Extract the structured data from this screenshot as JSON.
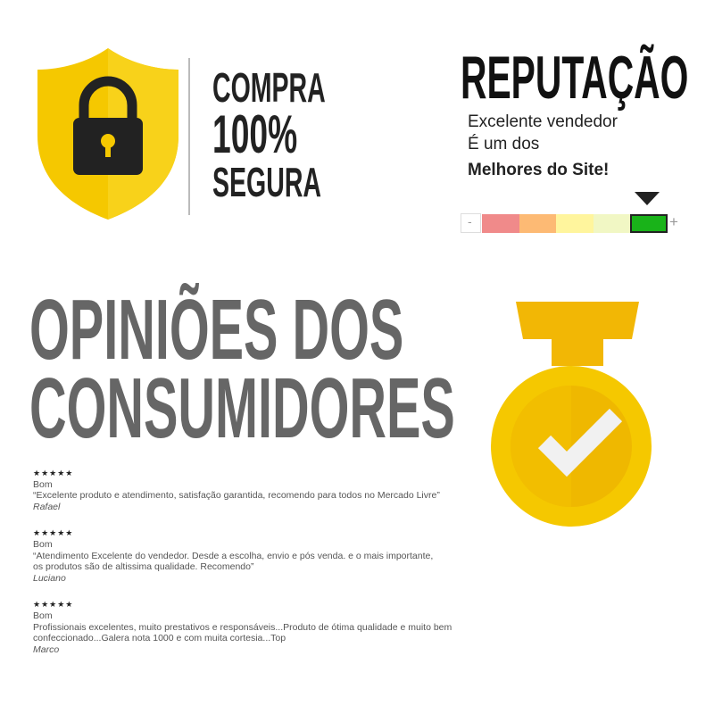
{
  "secure": {
    "lines": [
      "COMPRA",
      "100%",
      "SEGURA"
    ],
    "icon": "lock-shield-icon",
    "shield_color": "#F5C800"
  },
  "reputation": {
    "title": "REPUTAÇÃO",
    "line1": "Excelente vendedor",
    "line2": "É um dos",
    "line3": "Melhores do Site!",
    "scale_min": "-",
    "scale_max": "+",
    "scale_colors": [
      "#F08A8A",
      "#FDBA74",
      "#FFF59D",
      "#F1F7C4",
      "#19B319"
    ],
    "selected_level": 5,
    "levels": 5
  },
  "opinions": {
    "title_line1": "OPINIÕES DOS",
    "title_line2": "CONSUMIDORES",
    "reviews": [
      {
        "stars": "★★★★★",
        "rating": "Bom",
        "text": "“Excelente produto e atendimento, satisfação garantida, recomendo para todos no Mercado Livre”",
        "author": "Rafael"
      },
      {
        "stars": "★★★★★",
        "rating": "Bom",
        "text": "“Atendimento Excelente do vendedor. Desde a escolha, envio e pós venda. e o mais importante, os produtos são de altissima qualidade. Recomendo”",
        "author": "Luciano"
      },
      {
        "stars": "★★★★★",
        "rating": "Bom",
        "text": "Profissionais excelentes, muito prestativos e responsáveis...Produto de ótima qualidade e muito bem confeccionado...Galera nota 1000 e com muita cortesia...Top",
        "author": "Marco"
      }
    ]
  },
  "medal": {
    "icon": "check-medal-icon",
    "color": "#F5C800"
  }
}
